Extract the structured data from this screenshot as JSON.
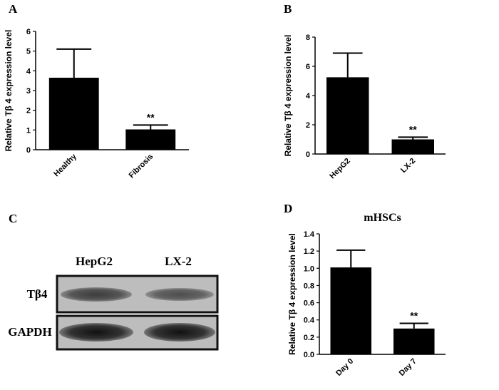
{
  "chart_data": [
    {
      "type": "bar",
      "panel_label": "A",
      "ylabel": "Relative Tβ 4 expression level",
      "categories": [
        "Healthy",
        "Fibrosis"
      ],
      "values": [
        3.65,
        1.03
      ],
      "errors": [
        1.45,
        0.22
      ],
      "value_annotations": [
        null,
        "**"
      ],
      "color": "#000000",
      "ylim": [
        0,
        6
      ],
      "yticks": [
        0,
        1,
        2,
        3,
        4,
        5,
        6
      ]
    },
    {
      "type": "bar",
      "panel_label": "B",
      "ylabel": "Relative Tβ 4 expression level",
      "categories": [
        "HepG2",
        "LX-2"
      ],
      "values": [
        5.25,
        1.0
      ],
      "errors": [
        1.65,
        0.15
      ],
      "value_annotations": [
        null,
        "**"
      ],
      "color": "#000000",
      "ylim": [
        0,
        8
      ],
      "yticks": [
        0,
        2,
        4,
        6,
        8
      ]
    },
    {
      "type": "bar",
      "panel_label": "D",
      "title": "mHSCs",
      "ylabel": "Relative Tβ 4 expression level",
      "categories": [
        "Day 0",
        "Day 7"
      ],
      "values": [
        1.01,
        0.3
      ],
      "errors": [
        0.2,
        0.06
      ],
      "value_annotations": [
        null,
        "**"
      ],
      "color": "#000000",
      "ylim": [
        0,
        1.4
      ],
      "yticks": [
        {
          "value": 0,
          "label": "0.0"
        },
        0.2,
        0.4,
        0.6,
        0.8,
        {
          "value": 1,
          "label": "1.0"
        },
        1.2,
        1.4
      ]
    }
  ],
  "blot": {
    "panel_label": "C",
    "lanes": [
      "HepG2",
      "LX-2"
    ],
    "rows": [
      "Tβ4",
      "GAPDH"
    ]
  }
}
